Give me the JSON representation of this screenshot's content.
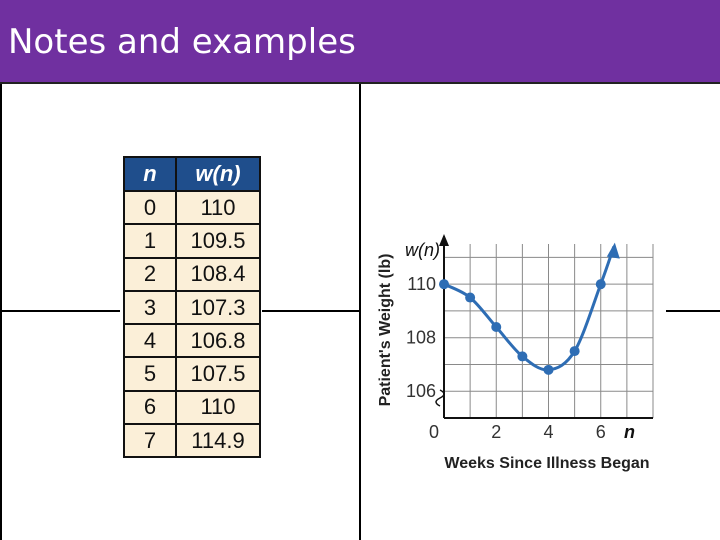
{
  "slide": {
    "title": "Notes and examples",
    "accent_color": "#7030a0"
  },
  "table": {
    "headers": [
      "n",
      "w(n)"
    ],
    "rows": [
      [
        "0",
        "110"
      ],
      [
        "1",
        "109.5"
      ],
      [
        "2",
        "108.4"
      ],
      [
        "3",
        "107.3"
      ],
      [
        "4",
        "106.8"
      ],
      [
        "5",
        "107.5"
      ],
      [
        "6",
        "110"
      ],
      [
        "7",
        "114.9"
      ]
    ],
    "header_color": "#1f4e8c",
    "cell_color": "#fbefd8"
  },
  "chart_data": {
    "type": "line",
    "xlabel": "Weeks Since Illness Began",
    "ylabel": "Patient's Weight (lb)",
    "x_axis_var": "n",
    "y_axis_var": "w(n)",
    "xlim": [
      0,
      8
    ],
    "ylim": [
      105,
      111.5
    ],
    "x_ticks": [
      0,
      2,
      4,
      6
    ],
    "y_ticks": [
      106,
      108,
      110
    ],
    "y_axis_break": true,
    "grid": true,
    "series": [
      {
        "x": [
          0,
          1,
          2,
          3,
          4,
          5,
          6
        ],
        "y": [
          110,
          109.5,
          108.4,
          107.3,
          106.8,
          107.5,
          110
        ],
        "color": "#2e6db4"
      }
    ],
    "curve_continues_with_arrow": true
  }
}
